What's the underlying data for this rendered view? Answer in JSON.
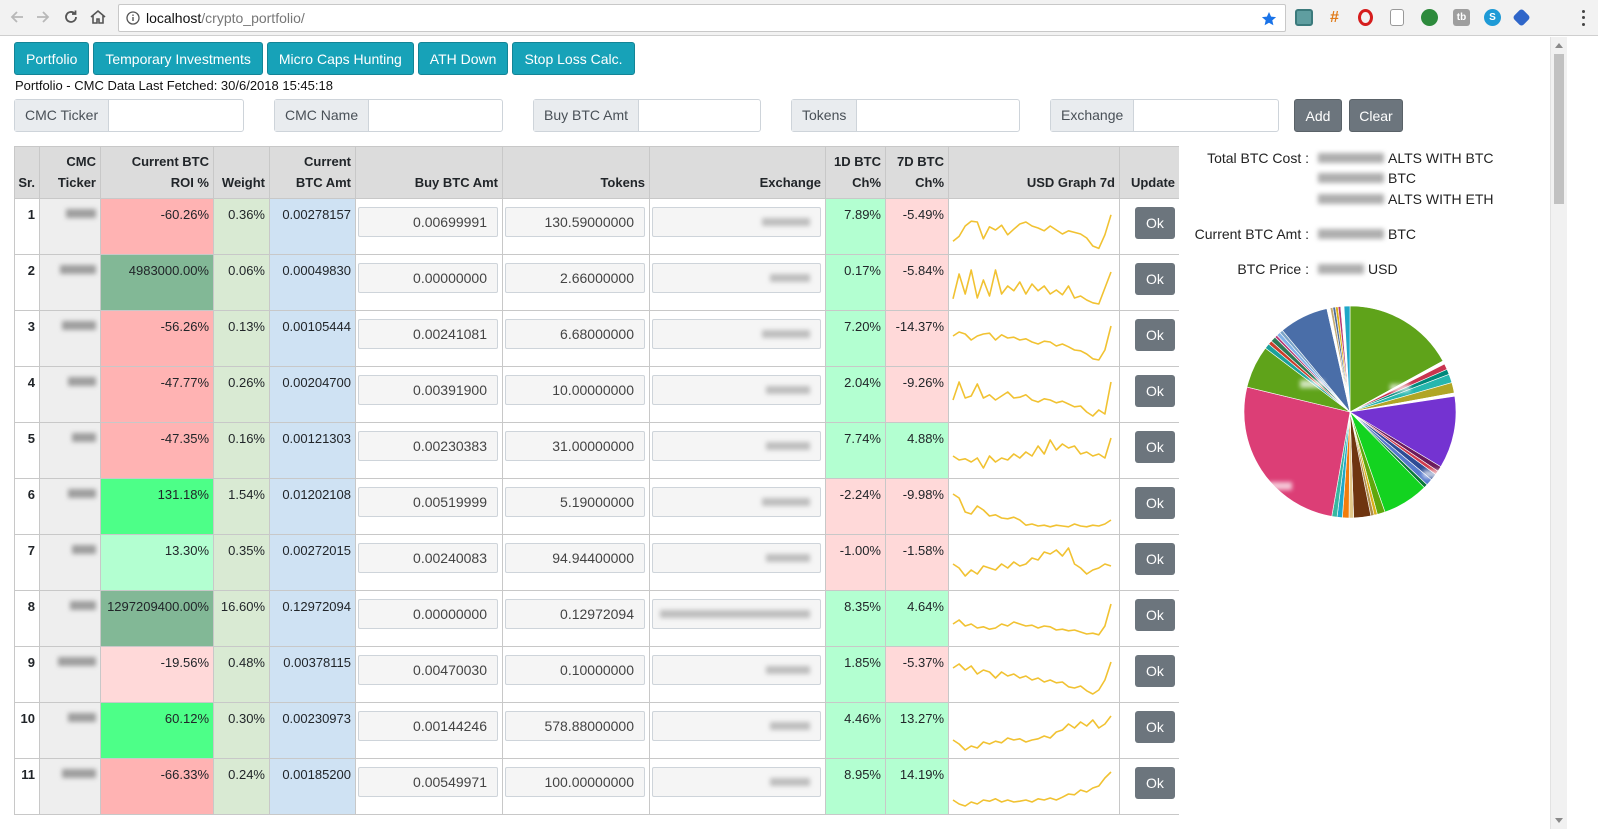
{
  "browser": {
    "url_host": "localhost",
    "url_path": "/crypto_portfolio/"
  },
  "nav_tabs": [
    "Portfolio",
    "Temporary Investments",
    "Micro Caps Hunting",
    "ATH Down",
    "Stop Loss Calc."
  ],
  "fetched_text": "Portfolio - CMC Data Last Fetched: 30/6/2018 15:45:18",
  "form": {
    "cmc_ticker": "CMC Ticker",
    "cmc_name": "CMC Name",
    "buy_btc_amt": "Buy BTC Amt",
    "tokens": "Tokens",
    "exchange": "Exchange",
    "add": "Add",
    "clear": "Clear"
  },
  "table": {
    "headers": {
      "sr": "Sr.",
      "ticker_1": "CMC",
      "ticker_2": "Ticker",
      "roi_1": "Current BTC",
      "roi_2": "ROI %",
      "weight": "Weight",
      "amt_1": "Current",
      "amt_2": "BTC Amt",
      "buy": "Buy BTC Amt",
      "tokens": "Tokens",
      "exchange": "Exchange",
      "d1_1": "1D BTC",
      "d1_2": "Ch%",
      "d7_1": "7D BTC",
      "d7_2": "Ch%",
      "graph": "USD Graph 7d",
      "update": "Update"
    },
    "ok_label": "Ok",
    "rows": [
      {
        "sr": "1",
        "roi": "-60.26%",
        "roi_color": "#ffb3b3",
        "weight": "0.36%",
        "btc_amt": "0.00278157",
        "buy": "0.00699991",
        "tokens": "130.59000000",
        "d1": "7.89%",
        "d1_color": "#b3ffd1",
        "d7": "-5.49%",
        "d7_color": "#ffd9d9",
        "spark": [
          0.78,
          0.66,
          0.4,
          0.28,
          0.3,
          0.72,
          0.42,
          0.5,
          0.38,
          0.62,
          0.48,
          0.35,
          0.3,
          0.4,
          0.45,
          0.52,
          0.4,
          0.5,
          0.6,
          0.52,
          0.56,
          0.6,
          0.7,
          0.9,
          0.96,
          0.62,
          0.12
        ]
      },
      {
        "sr": "2",
        "roi": "4983000.00%",
        "roi_color": "#82b896",
        "weight": "0.06%",
        "btc_amt": "0.00049830",
        "buy": "0.00000000",
        "tokens": "2.66000000",
        "d1": "0.17%",
        "d1_color": "#b3ffd1",
        "d7": "-5.84%",
        "d7_color": "#ffd9d9",
        "spark": [
          0.82,
          0.2,
          0.7,
          0.1,
          0.8,
          0.35,
          0.75,
          0.1,
          0.7,
          0.5,
          0.62,
          0.4,
          0.7,
          0.45,
          0.62,
          0.5,
          0.7,
          0.6,
          0.72,
          0.5,
          0.8,
          0.75,
          0.85,
          0.92,
          0.95,
          0.55,
          0.15
        ]
      },
      {
        "sr": "3",
        "roi": "-56.26%",
        "roi_color": "#ffb3b3",
        "weight": "0.13%",
        "btc_amt": "0.00105444",
        "buy": "0.00241081",
        "tokens": "6.68000000",
        "d1": "7.20%",
        "d1_color": "#b3ffd1",
        "d7": "-14.37%",
        "d7_color": "#ffd9d9",
        "spark": [
          0.35,
          0.25,
          0.3,
          0.45,
          0.35,
          0.3,
          0.28,
          0.45,
          0.32,
          0.4,
          0.38,
          0.45,
          0.42,
          0.5,
          0.55,
          0.48,
          0.5,
          0.6,
          0.55,
          0.62,
          0.7,
          0.72,
          0.8,
          0.92,
          0.95,
          0.7,
          0.1
        ]
      },
      {
        "sr": "4",
        "roi": "-47.77%",
        "roi_color": "#ffb3b3",
        "weight": "0.26%",
        "btc_amt": "0.00204700",
        "buy": "0.00391900",
        "tokens": "10.00000000",
        "d1": "2.04%",
        "d1_color": "#b3ffd1",
        "d7": "-9.26%",
        "d7_color": "#ffd9d9",
        "spark": [
          0.55,
          0.1,
          0.5,
          0.45,
          0.15,
          0.5,
          0.42,
          0.55,
          0.45,
          0.35,
          0.5,
          0.48,
          0.42,
          0.55,
          0.6,
          0.52,
          0.55,
          0.62,
          0.58,
          0.65,
          0.72,
          0.7,
          0.85,
          0.95,
          0.8,
          0.9,
          0.1
        ]
      },
      {
        "sr": "5",
        "roi": "-47.35%",
        "roi_color": "#ffb3b3",
        "weight": "0.16%",
        "btc_amt": "0.00121303",
        "buy": "0.00230383",
        "tokens": "31.00000000",
        "d1": "7.74%",
        "d1_color": "#b3ffd1",
        "d7": "4.88%",
        "d7_color": "#b3ffd1",
        "spark": [
          0.55,
          0.65,
          0.62,
          0.7,
          0.6,
          0.85,
          0.55,
          0.7,
          0.6,
          0.65,
          0.5,
          0.6,
          0.45,
          0.55,
          0.3,
          0.5,
          0.15,
          0.4,
          0.25,
          0.35,
          0.3,
          0.5,
          0.45,
          0.55,
          0.5,
          0.6,
          0.1
        ]
      },
      {
        "sr": "6",
        "roi": "131.18%",
        "roi_color": "#4dff88",
        "weight": "1.54%",
        "btc_amt": "0.01202108",
        "buy": "0.00519999",
        "tokens": "5.19000000",
        "d1": "-2.24%",
        "d1_color": "#ffd9d9",
        "d7": "-9.98%",
        "d7_color": "#ffd9d9",
        "spark": [
          0.1,
          0.2,
          0.55,
          0.6,
          0.4,
          0.5,
          0.65,
          0.62,
          0.7,
          0.72,
          0.68,
          0.75,
          0.88,
          0.85,
          0.9,
          0.88,
          0.92,
          0.88,
          0.9,
          0.92,
          0.85,
          0.9,
          0.92,
          0.88,
          0.9,
          0.85,
          0.75
        ]
      },
      {
        "sr": "7",
        "roi": "13.30%",
        "roi_color": "#b3ffd1",
        "weight": "0.35%",
        "btc_amt": "0.00272015",
        "buy": "0.00240083",
        "tokens": "94.94400000",
        "d1": "-1.00%",
        "d1_color": "#ffd9d9",
        "d7": "-1.58%",
        "d7_color": "#ffd9d9",
        "spark": [
          0.45,
          0.55,
          0.75,
          0.6,
          0.7,
          0.5,
          0.55,
          0.6,
          0.45,
          0.55,
          0.4,
          0.5,
          0.45,
          0.3,
          0.35,
          0.15,
          0.2,
          0.1,
          0.25,
          0.05,
          0.45,
          0.55,
          0.7,
          0.6,
          0.55,
          0.45,
          0.5
        ]
      },
      {
        "sr": "8",
        "roi": "1297209400.00%",
        "roi_color": "#82b896",
        "weight": "16.60%",
        "btc_amt": "0.12972094",
        "buy": "0.00000000",
        "tokens": "0.12972094",
        "d1": "8.35%",
        "d1_color": "#b3ffd1",
        "d7": "4.64%",
        "d7_color": "#b3ffd1",
        "spark": [
          0.55,
          0.45,
          0.6,
          0.55,
          0.65,
          0.62,
          0.68,
          0.65,
          0.55,
          0.6,
          0.5,
          0.55,
          0.6,
          0.58,
          0.65,
          0.6,
          0.62,
          0.7,
          0.68,
          0.72,
          0.7,
          0.75,
          0.8,
          0.78,
          0.82,
          0.6,
          0.05
        ]
      },
      {
        "sr": "9",
        "roi": "-19.56%",
        "roi_color": "#ffd9d9",
        "weight": "0.48%",
        "btc_amt": "0.00378115",
        "buy": "0.00470030",
        "tokens": "0.10000000",
        "d1": "1.85%",
        "d1_color": "#b3ffd1",
        "d7": "-5.37%",
        "d7_color": "#ffd9d9",
        "spark": [
          0.25,
          0.15,
          0.3,
          0.2,
          0.4,
          0.3,
          0.35,
          0.5,
          0.35,
          0.45,
          0.4,
          0.5,
          0.45,
          0.55,
          0.5,
          0.6,
          0.55,
          0.62,
          0.6,
          0.72,
          0.75,
          0.7,
          0.82,
          0.9,
          0.8,
          0.55,
          0.1
        ]
      },
      {
        "sr": "10",
        "roi": "60.12%",
        "roi_color": "#4dff88",
        "weight": "0.30%",
        "btc_amt": "0.00230973",
        "buy": "0.00144246",
        "tokens": "578.88000000",
        "d1": "4.46%",
        "d1_color": "#b3ffd1",
        "d7": "13.27%",
        "d7_color": "#b3ffd1",
        "spark": [
          0.65,
          0.75,
          0.9,
          0.8,
          0.85,
          0.7,
          0.75,
          0.68,
          0.72,
          0.6,
          0.65,
          0.62,
          0.7,
          0.65,
          0.62,
          0.55,
          0.6,
          0.45,
          0.4,
          0.25,
          0.35,
          0.2,
          0.3,
          0.15,
          0.35,
          0.25,
          0.05
        ]
      },
      {
        "sr": "11",
        "roi": "-66.33%",
        "roi_color": "#ffb3b3",
        "weight": "0.24%",
        "btc_amt": "0.00185200",
        "buy": "0.00549971",
        "tokens": "100.00000000",
        "d1": "8.95%",
        "d1_color": "#b3ffd1",
        "d7": "14.19%",
        "d7_color": "#b3ffd1",
        "spark": [
          0.75,
          0.85,
          0.9,
          0.8,
          0.85,
          0.75,
          0.78,
          0.72,
          0.8,
          0.75,
          0.8,
          0.78,
          0.75,
          0.8,
          0.72,
          0.75,
          0.7,
          0.75,
          0.68,
          0.6,
          0.62,
          0.5,
          0.55,
          0.45,
          0.4,
          0.2,
          0.05
        ]
      }
    ]
  },
  "stats": {
    "total_cost_label": "Total BTC Cost :",
    "alts_btc": "ALTS WITH BTC",
    "btc": "BTC",
    "alts_eth": "ALTS WITH ETH",
    "current_amt_label": "Current BTC Amt :",
    "current_amt_unit": "BTC",
    "price_label": "BTC Price :",
    "price_unit": "USD"
  },
  "colors": {
    "tab": "#17a2b8",
    "button_dark": "#6c757d",
    "sparkline": "#f1c232",
    "weight_bg": "#d9ead3",
    "btc_amt_bg": "#cfe2f3"
  },
  "pie": [
    {
      "v": 17.0,
      "c": "#5fa31a"
    },
    {
      "v": 0.5,
      "c": "#ffffff"
    },
    {
      "v": 0.9,
      "c": "#c9344f"
    },
    {
      "v": 0.8,
      "c": "#00897b"
    },
    {
      "v": 1.3,
      "c": "#26b6ae"
    },
    {
      "v": 1.6,
      "c": "#b0a626"
    },
    {
      "v": 0.5,
      "c": "#ffffff"
    },
    {
      "v": 11.0,
      "c": "#7433d1"
    },
    {
      "v": 0.8,
      "c": "#6b1a5a"
    },
    {
      "v": 0.6,
      "c": "#cf3a4c"
    },
    {
      "v": 1.0,
      "c": "#2e4c95"
    },
    {
      "v": 1.0,
      "c": "#577acc"
    },
    {
      "v": 0.6,
      "c": "#0b7a3a"
    },
    {
      "v": 7.0,
      "c": "#13d320"
    },
    {
      "v": 1.2,
      "c": "#60a70d"
    },
    {
      "v": 0.5,
      "c": "#dab018"
    },
    {
      "v": 0.5,
      "c": "#b08e4a"
    },
    {
      "v": 2.6,
      "c": "#6f3510"
    },
    {
      "v": 0.7,
      "c": "#e3c98a"
    },
    {
      "v": 1.0,
      "c": "#f27d0c"
    },
    {
      "v": 0.8,
      "c": "#1fa8c8"
    },
    {
      "v": 0.8,
      "c": "#37b8a0"
    },
    {
      "v": 26.0,
      "c": "#dc3e76"
    },
    {
      "v": 6.5,
      "c": "#5fa31a"
    },
    {
      "v": 0.8,
      "c": "#1ba19b"
    },
    {
      "v": 0.6,
      "c": "#c93d2b"
    },
    {
      "v": 0.8,
      "c": "#2b7a56"
    },
    {
      "v": 0.4,
      "c": "#b63b76"
    },
    {
      "v": 0.6,
      "c": "#80b0e6"
    },
    {
      "v": 0.5,
      "c": "#7aa3c7"
    },
    {
      "v": 7.5,
      "c": "#4a6ea8"
    },
    {
      "v": 0.5,
      "c": "#ffffff"
    },
    {
      "v": 0.4,
      "c": "#c3aa72"
    },
    {
      "v": 0.4,
      "c": "#4e6c97"
    },
    {
      "v": 0.4,
      "c": "#dab018"
    },
    {
      "v": 0.4,
      "c": "#b63b76"
    },
    {
      "v": 0.5,
      "c": "#ffffff"
    },
    {
      "v": 0.9,
      "c": "#1fa8c8"
    }
  ]
}
